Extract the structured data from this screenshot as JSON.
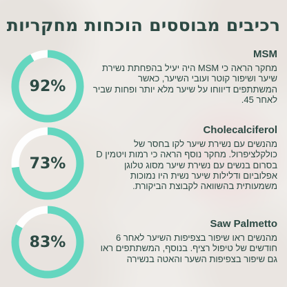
{
  "title": "רכיבים מבוססים הוכחות מחקריות",
  "colors": {
    "accent": "#64d6bf",
    "dark": "#2d4a44",
    "track": "#ffffff"
  },
  "items": [
    {
      "name": "MSM",
      "percent_label": "92%",
      "percent": 92,
      "description": "מחקר הראה כי MSM היה יעיל בהפחתת נשירת שיער ושיפור קוטר ועובי השיער, כאשר המשתתפים דיווחו על שיער מלא יותר ופחות שביר לאחר 45."
    },
    {
      "name": "Cholecalciferol",
      "percent_label": "73%",
      "percent": 73,
      "description": "מהנשים עם נשירת שיער לקו בחסר של כולקלציפרול. מחקר נוסף הראה כי רמות ויטמין D בסרום בנשים עם נשירת שיער מסוג טלוגן אפלוביום ודלילות שיער נשית היו נמוכות משמעותית בהשוואה לקבוצת הביקורת."
    },
    {
      "name": "Saw Palmetto",
      "percent_label": "83%",
      "percent": 83,
      "description": "מהנשים ראו שיפור בצפיפות השיער לאחר 6 חודשים של טיפול רציף. בנוסף, המשתתפים ראו גם שיפור בצפיפות השער והאטה בנשירה"
    }
  ]
}
